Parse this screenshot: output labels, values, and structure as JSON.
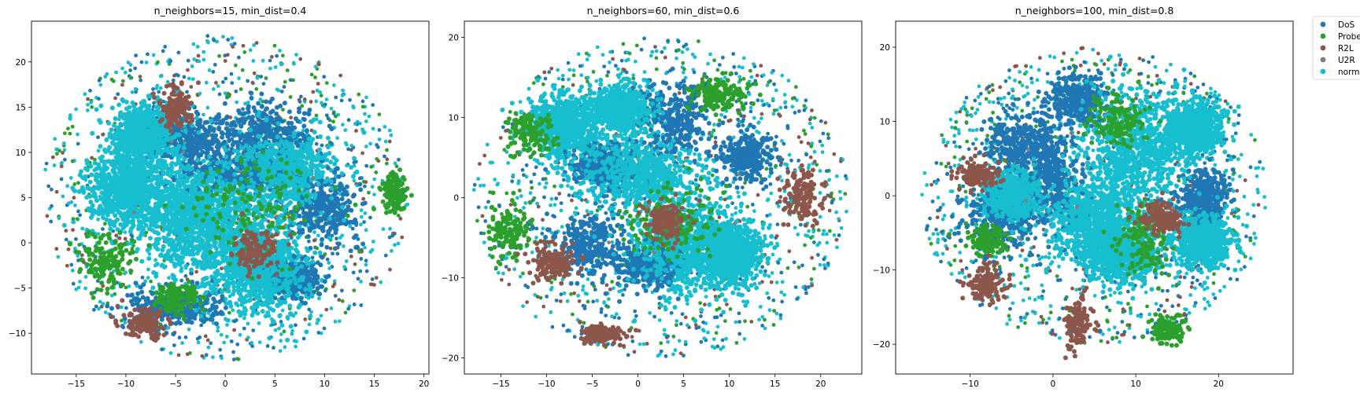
{
  "chart_data": [
    {
      "type": "scatter",
      "title": "n_neighbors=15, min_dist=0.4",
      "xlabel": "",
      "ylabel": "",
      "xlim": [
        -19.5,
        20.5
      ],
      "ylim": [
        -14.5,
        24.5
      ],
      "xticks": [
        -15,
        -10,
        -5,
        0,
        5,
        10,
        15,
        20
      ],
      "yticks": [
        -10,
        -5,
        0,
        5,
        10,
        15,
        20
      ],
      "cloud": {
        "center": [
          0,
          5
        ],
        "rx": 18.5,
        "ry": 18
      },
      "clusters": {
        "normal": [
          [
            -10,
            6,
            3.5,
            3.5
          ],
          [
            -4,
            4,
            5,
            5
          ],
          [
            0,
            1,
            6,
            6
          ],
          [
            6,
            8,
            4,
            3.5
          ],
          [
            -8,
            12,
            3,
            3
          ],
          [
            4,
            -3,
            4,
            4
          ]
        ],
        "DoS": [
          [
            -3,
            11,
            4,
            3
          ],
          [
            4,
            12,
            4,
            3
          ],
          [
            2,
            7.5,
            5,
            1.5
          ],
          [
            10,
            4,
            3,
            3
          ],
          [
            -5,
            -7,
            4,
            2
          ],
          [
            7,
            -4,
            2.5,
            2
          ]
        ],
        "Probe": [
          [
            17,
            5.5,
            1.2,
            2
          ],
          [
            3,
            4,
            6,
            5
          ],
          [
            -12,
            -2,
            2.5,
            3
          ],
          [
            -5,
            -6,
            2,
            1.5
          ]
        ],
        "R2L": [
          [
            -5,
            15,
            1.5,
            2
          ],
          [
            3,
            -1,
            2,
            2
          ],
          [
            -8,
            -9,
            2,
            1.5
          ]
        ]
      },
      "series": [
        {
          "name": "DoS",
          "color": "#1f77b4"
        },
        {
          "name": "Probe",
          "color": "#2ca02c"
        },
        {
          "name": "R2L",
          "color": "#8c564b"
        },
        {
          "name": "U2R",
          "color": "#7f7f7f"
        },
        {
          "name": "normal",
          "color": "#17becf"
        }
      ]
    },
    {
      "type": "scatter",
      "title": "n_neighbors=60, min_dist=0.6",
      "xlabel": "",
      "ylabel": "",
      "xlim": [
        -19,
        24.5
      ],
      "ylim": [
        -22,
        22
      ],
      "xticks": [
        -15,
        -10,
        -5,
        0,
        5,
        10,
        15,
        20
      ],
      "yticks": [
        -20,
        -10,
        0,
        10,
        20
      ],
      "cloud": {
        "center": [
          2.5,
          0
        ],
        "rx": 20.5,
        "ry": 20
      },
      "clusters": {
        "normal": [
          [
            -8,
            9,
            3.5,
            3.5
          ],
          [
            0,
            3,
            6,
            4
          ],
          [
            5,
            -6,
            5,
            5
          ],
          [
            10,
            -7,
            3,
            3.5
          ],
          [
            -2,
            11,
            3,
            2.5
          ]
        ],
        "DoS": [
          [
            4,
            10,
            4,
            4
          ],
          [
            -5,
            -6,
            3.5,
            3.5
          ],
          [
            1,
            -9,
            3,
            2.5
          ],
          [
            -4,
            4,
            3,
            2.5
          ],
          [
            12,
            5,
            2.5,
            2.5
          ]
        ],
        "Probe": [
          [
            9,
            13,
            3,
            2
          ],
          [
            -12,
            8,
            2.5,
            2.5
          ],
          [
            4,
            -3,
            5,
            4
          ],
          [
            -14,
            -4,
            2,
            3
          ]
        ],
        "R2L": [
          [
            -9,
            -8,
            2.5,
            2
          ],
          [
            3,
            -3,
            2,
            2
          ],
          [
            18,
            0,
            2,
            3
          ],
          [
            -4,
            -17,
            2,
            1
          ]
        ]
      },
      "series": [
        {
          "name": "DoS",
          "color": "#1f77b4"
        },
        {
          "name": "Probe",
          "color": "#2ca02c"
        },
        {
          "name": "R2L",
          "color": "#8c564b"
        },
        {
          "name": "U2R",
          "color": "#7f7f7f"
        },
        {
          "name": "normal",
          "color": "#17becf"
        }
      ]
    },
    {
      "type": "scatter",
      "title": "n_neighbors=100, min_dist=0.8",
      "xlabel": "",
      "ylabel": "",
      "xlim": [
        -19,
        29
      ],
      "ylim": [
        -24,
        23.5
      ],
      "xticks": [
        -10,
        0,
        10,
        20
      ],
      "yticks": [
        -20,
        -10,
        0,
        10,
        20
      ],
      "cloud": {
        "center": [
          5,
          0
        ],
        "rx": 21,
        "ry": 20
      },
      "clusters": {
        "normal": [
          [
            10,
            6,
            6,
            7
          ],
          [
            5,
            -3,
            5,
            5
          ],
          [
            8,
            -8,
            4,
            3
          ],
          [
            17,
            9,
            3,
            3
          ],
          [
            -5,
            0,
            3,
            3
          ],
          [
            18,
            -6,
            3,
            3
          ]
        ],
        "DoS": [
          [
            -4,
            7,
            4,
            4
          ],
          [
            -6,
            -3,
            4,
            4
          ],
          [
            3,
            13,
            3,
            3
          ],
          [
            18,
            0,
            3,
            3
          ],
          [
            0,
            3,
            3,
            6
          ]
        ],
        "Probe": [
          [
            8,
            10,
            3,
            3
          ],
          [
            11,
            -6,
            3,
            4
          ],
          [
            -8,
            -6,
            2,
            2
          ],
          [
            14,
            -18,
            2,
            2
          ]
        ],
        "R2L": [
          [
            -9,
            3,
            2,
            2
          ],
          [
            13,
            -3,
            2,
            2
          ],
          [
            3,
            -17,
            1.5,
            3
          ],
          [
            -8,
            -12,
            2,
            2
          ]
        ]
      },
      "series": [
        {
          "name": "DoS",
          "color": "#1f77b4"
        },
        {
          "name": "Probe",
          "color": "#2ca02c"
        },
        {
          "name": "R2L",
          "color": "#8c564b"
        },
        {
          "name": "U2R",
          "color": "#7f7f7f"
        },
        {
          "name": "normal",
          "color": "#17becf"
        }
      ]
    }
  ],
  "legend": {
    "placement": "outside-top-right",
    "items": [
      {
        "name": "DoS",
        "color": "#1f77b4"
      },
      {
        "name": "Probe",
        "color": "#2ca02c"
      },
      {
        "name": "R2L",
        "color": "#8c564b"
      },
      {
        "name": "U2R",
        "color": "#7f7f7f"
      },
      {
        "name": "normal",
        "color": "#17becf"
      }
    ]
  }
}
